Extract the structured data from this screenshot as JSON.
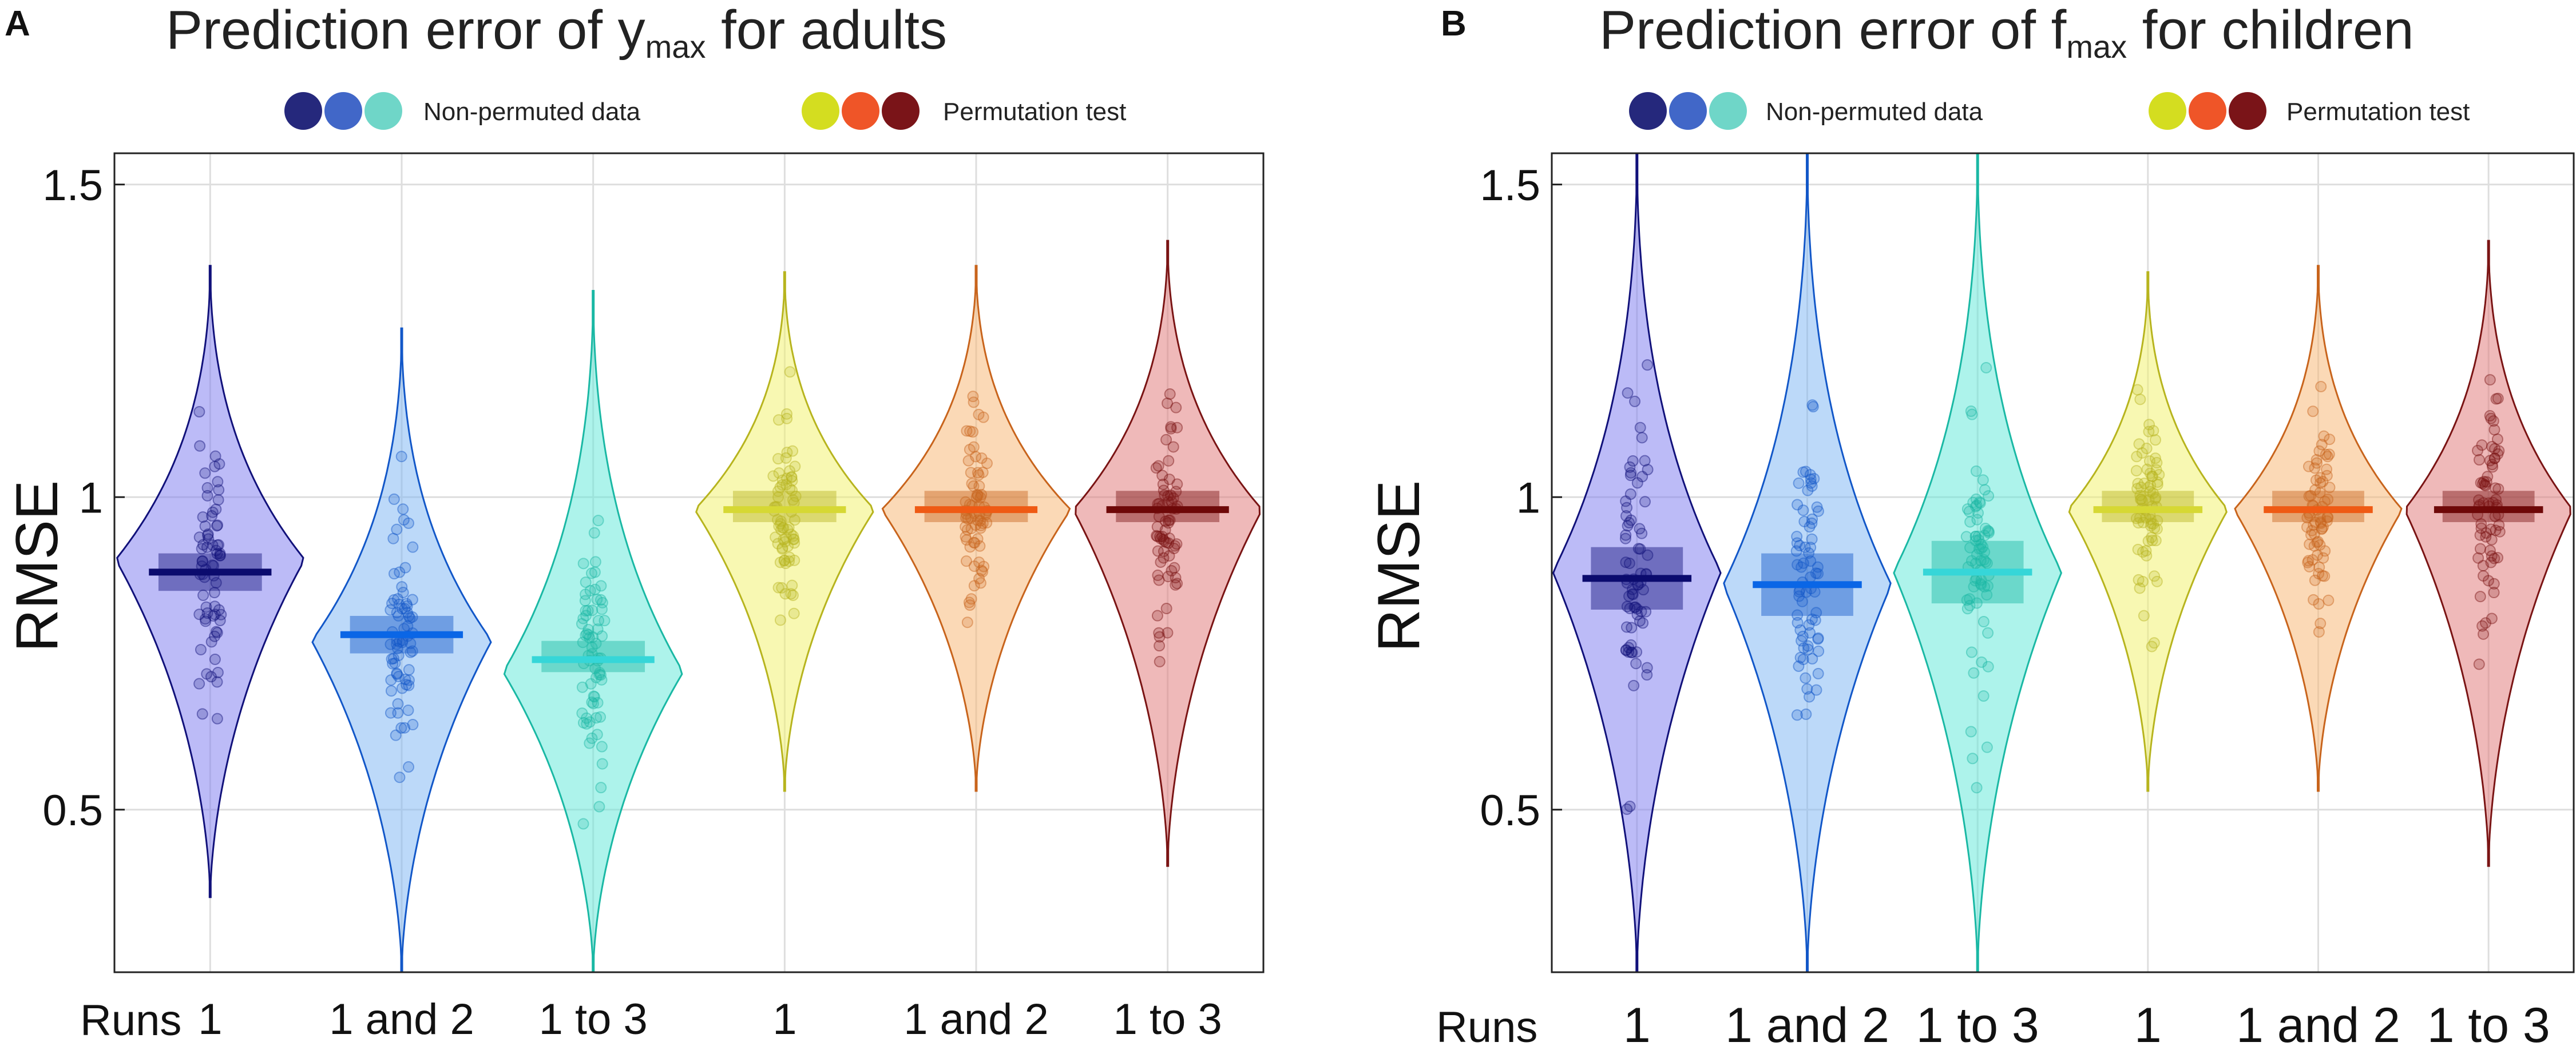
{
  "colors": {
    "non_permuted": [
      "#25287c",
      "#4167c8",
      "#6fd6c8"
    ],
    "permuted": [
      "#d4dd20",
      "#ef5528",
      "#7a1418"
    ],
    "violin_fill": [
      "#7a78f0",
      "#7ab4f4",
      "#5ce8d8",
      "#f2f266",
      "#f8b46e",
      "#e07474"
    ],
    "violin_stroke": [
      "#11117a",
      "#1257c8",
      "#1ab8a4",
      "#b7b41e",
      "#c8641c",
      "#7a1414"
    ],
    "median_line": [
      "#0b0b6e",
      "#0a66e6",
      "#36d6d8",
      "#d6d834",
      "#ef5a14",
      "#6e0808"
    ],
    "axis": "#222222",
    "grid": "#dedede"
  },
  "chart_data": [
    {
      "panel_label": "A",
      "type": "violin",
      "title_pre": "Prediction error of y",
      "title_sub": "max",
      "title_post": " for adults",
      "legend": {
        "non_permuted_label": "Non-permuted data",
        "permuted_label": "Permutation test",
        "placement": "top"
      },
      "ylabel": "RMSE",
      "xlabel": "Runs",
      "ylim": [
        0.24,
        1.55
      ],
      "yticks": [
        0.5,
        1,
        1.5
      ],
      "ytick_labels": [
        "0.5",
        "1",
        "1.5"
      ],
      "grid": true,
      "categories": [
        "1",
        "1 and 2",
        "1 to 3",
        "1",
        "1 and 2",
        "1 to 3"
      ],
      "series": [
        {
          "name": "Non-permuted 1",
          "group": "non_permuted",
          "min": 0.36,
          "max": 1.37,
          "mode": 0.9,
          "median": 0.88,
          "q1": 0.85,
          "q3": 0.91,
          "wide": 1.05
        },
        {
          "name": "Non-permuted 1 and 2",
          "group": "non_permuted",
          "min": 0.24,
          "max": 1.27,
          "mode": 0.77,
          "median": 0.78,
          "q1": 0.75,
          "q3": 0.81,
          "wide": 1.0
        },
        {
          "name": "Non-permuted 1 to 3",
          "group": "non_permuted",
          "min": 0.24,
          "max": 1.33,
          "mode": 0.72,
          "median": 0.74,
          "q1": 0.72,
          "q3": 0.77,
          "wide": 1.0
        },
        {
          "name": "Permutation 1",
          "group": "permuted",
          "min": 0.53,
          "max": 1.36,
          "mode": 0.98,
          "median": 0.98,
          "q1": 0.96,
          "q3": 1.01,
          "wide": 1.0
        },
        {
          "name": "Permutation 1 and 2",
          "group": "permuted",
          "min": 0.53,
          "max": 1.37,
          "mode": 0.98,
          "median": 0.98,
          "q1": 0.96,
          "q3": 1.01,
          "wide": 1.05
        },
        {
          "name": "Permutation 1 to 3",
          "group": "permuted",
          "min": 0.41,
          "max": 1.41,
          "mode": 0.98,
          "median": 0.98,
          "q1": 0.96,
          "q3": 1.01,
          "wide": 1.05
        }
      ]
    },
    {
      "panel_label": "B",
      "type": "violin",
      "title_pre": "Prediction error of f",
      "title_sub": "max",
      "title_post": " for children",
      "legend": {
        "non_permuted_label": "Non-permuted data",
        "permuted_label": "Permutation test",
        "placement": "top"
      },
      "ylabel": "RMSE",
      "xlabel": "Runs",
      "ylim": [
        0.24,
        1.55
      ],
      "yticks": [
        0.5,
        1,
        1.5
      ],
      "ytick_labels": [
        "0.5",
        "1",
        "1.5"
      ],
      "grid": true,
      "categories": [
        "1",
        "1 and 2",
        "1 to 3",
        "1",
        "1 and 2",
        "1 to 3"
      ],
      "series": [
        {
          "name": "Non-permuted 1",
          "group": "non_permuted",
          "min": 0.24,
          "max": 1.55,
          "mode": 0.88,
          "median": 0.87,
          "q1": 0.82,
          "q3": 0.92,
          "wide": 1.05
        },
        {
          "name": "Non-permuted 1 and 2",
          "group": "non_permuted",
          "min": 0.24,
          "max": 1.55,
          "mode": 0.86,
          "median": 0.86,
          "q1": 0.81,
          "q3": 0.91,
          "wide": 1.05
        },
        {
          "name": "Non-permuted 1 to 3",
          "group": "non_permuted",
          "min": 0.24,
          "max": 1.55,
          "mode": 0.88,
          "median": 0.88,
          "q1": 0.83,
          "q3": 0.93,
          "wide": 1.05
        },
        {
          "name": "Permutation 1",
          "group": "permuted",
          "min": 0.53,
          "max": 1.36,
          "mode": 0.98,
          "median": 0.98,
          "q1": 0.96,
          "q3": 1.01,
          "wide": 1.0
        },
        {
          "name": "Permutation 1 and 2",
          "group": "permuted",
          "min": 0.53,
          "max": 1.37,
          "mode": 0.98,
          "median": 0.98,
          "q1": 0.96,
          "q3": 1.01,
          "wide": 1.05
        },
        {
          "name": "Permutation 1 to 3",
          "group": "permuted",
          "min": 0.41,
          "max": 1.41,
          "mode": 0.98,
          "median": 0.98,
          "q1": 0.96,
          "q3": 1.01,
          "wide": 1.05
        }
      ]
    }
  ]
}
